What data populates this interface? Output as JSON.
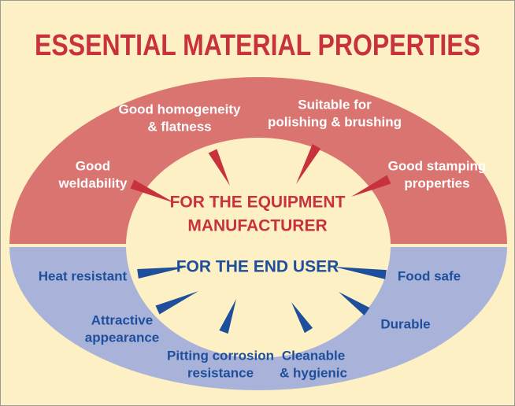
{
  "title": "ESSENTIAL MATERIAL PROPERTIES",
  "manufacturer": {
    "heading": [
      "FOR THE EQUIPMENT",
      "MANUFACTURER"
    ],
    "properties": [
      {
        "lines": [
          "Good",
          "weldability"
        ]
      },
      {
        "lines": [
          "Good homogeneity",
          "& flatness"
        ]
      },
      {
        "lines": [
          "Suitable for",
          "polishing & brushing"
        ]
      },
      {
        "lines": [
          "Good stamping",
          "properties"
        ]
      }
    ]
  },
  "end_user": {
    "heading": [
      "FOR THE END USER"
    ],
    "properties": [
      {
        "lines": [
          "Heat resistant"
        ]
      },
      {
        "lines": [
          "Attractive",
          "appearance"
        ]
      },
      {
        "lines": [
          "Pitting corrosion",
          "resistance"
        ]
      },
      {
        "lines": [
          "Cleanable",
          "& hygienic"
        ]
      },
      {
        "lines": [
          "Durable"
        ]
      },
      {
        "lines": [
          "Food safe"
        ]
      }
    ]
  }
}
